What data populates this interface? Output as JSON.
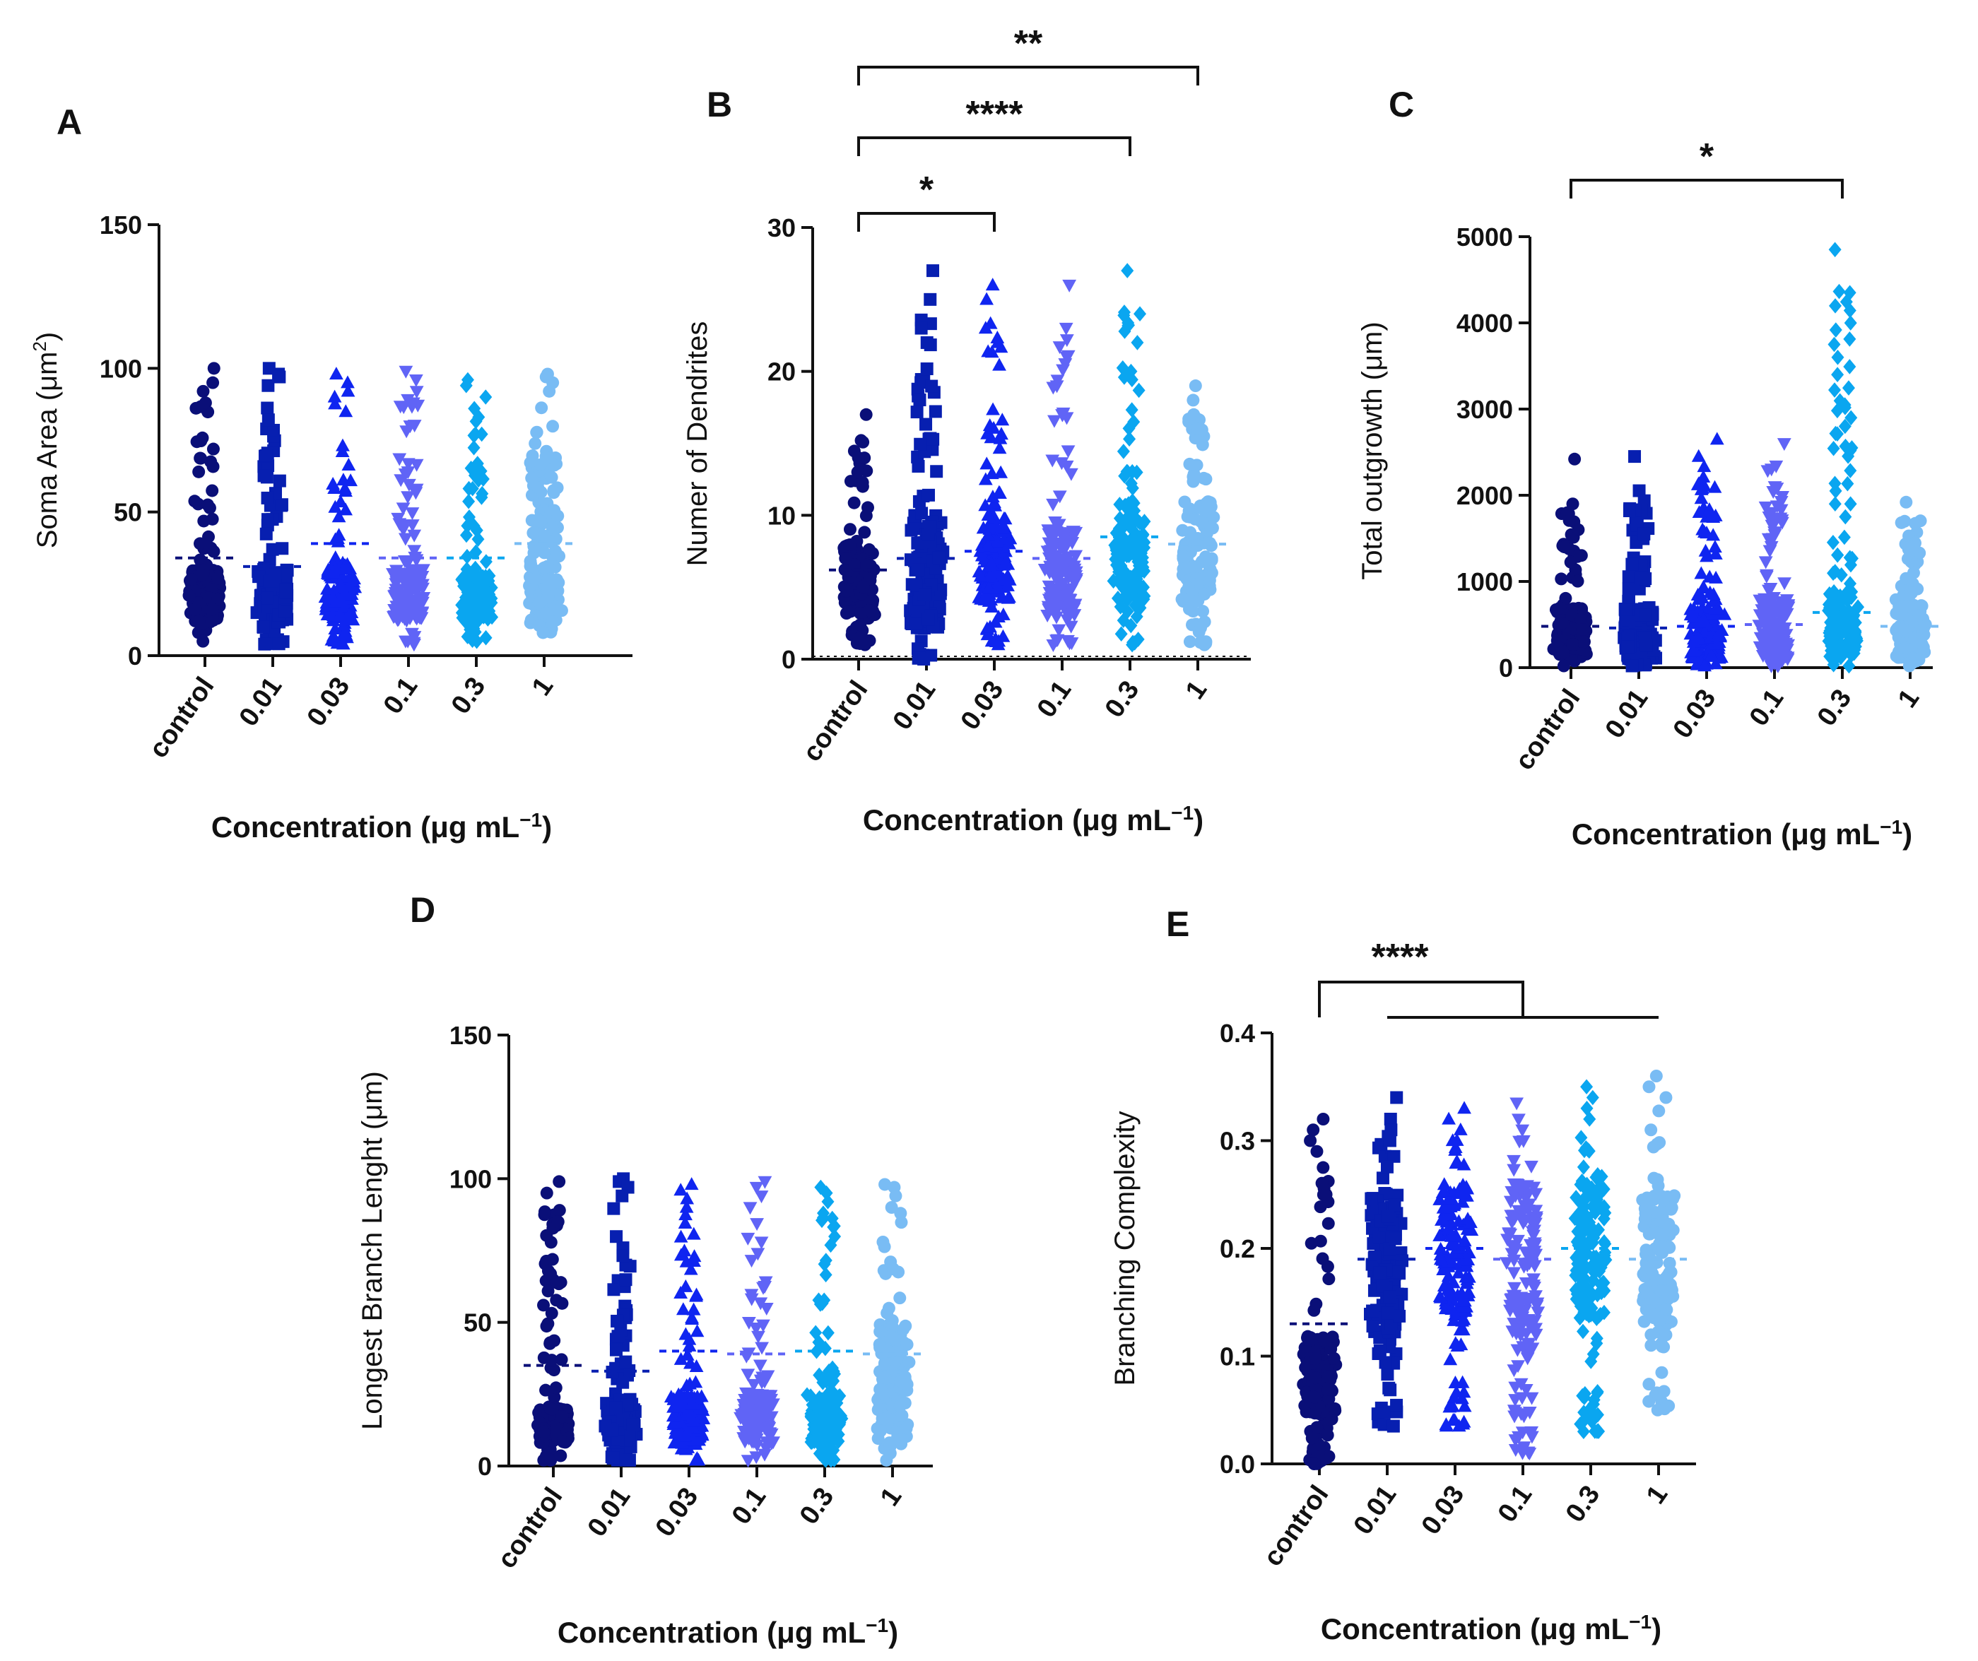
{
  "figure": {
    "series_colors": [
      "#0a0f78",
      "#071fb0",
      "#0f25f0",
      "#6064f6",
      "#0aa6f0",
      "#79bcf4"
    ],
    "series_markers": [
      "circle",
      "square",
      "triangle-up",
      "triangle-down",
      "diamond",
      "circle"
    ],
    "categories": [
      "control",
      "0.01",
      "0.03",
      "0.1",
      "0.3",
      "1"
    ],
    "x_axis_label": "Concentration (μg mL",
    "x_axis_label_superscript": "−1",
    "x_axis_label_suffix": ")"
  },
  "chart_data": [
    {
      "panel": "A",
      "type": "scatter",
      "title": "",
      "ylabel": "Soma Area (μm",
      "ylabel_superscript": "2",
      "ylabel_suffix": ")",
      "ylim": [
        0,
        150
      ],
      "yticks": [
        "0",
        "50",
        "100",
        "150"
      ],
      "series": [
        {
          "name": "control",
          "min": 5,
          "max": 100,
          "mean": 34,
          "dense_low": 12,
          "dense_high": 30,
          "top_points": [
            100,
            95,
            92,
            88
          ]
        },
        {
          "name": "0.01",
          "min": 4,
          "max": 100,
          "mean": 31,
          "dense_low": 12,
          "dense_high": 30,
          "top_points": [
            100,
            98,
            97,
            94
          ]
        },
        {
          "name": "0.03",
          "min": 4,
          "max": 98,
          "mean": 39,
          "dense_low": 12,
          "dense_high": 32,
          "top_points": [
            98,
            95,
            92,
            90
          ]
        },
        {
          "name": "0.1",
          "min": 4,
          "max": 99,
          "mean": 34,
          "dense_low": 12,
          "dense_high": 30,
          "top_points": [
            99,
            96,
            92,
            88
          ]
        },
        {
          "name": "0.3",
          "min": 5,
          "max": 96,
          "mean": 34,
          "dense_low": 12,
          "dense_high": 28,
          "top_points": [
            96,
            94,
            90,
            86
          ]
        },
        {
          "name": "1",
          "min": 8,
          "max": 98,
          "mean": 39,
          "dense_low": 10,
          "dense_high": 70,
          "top_points": [
            98,
            97,
            95,
            92
          ]
        }
      ],
      "significance": []
    },
    {
      "panel": "B",
      "type": "scatter",
      "title": "",
      "ylabel": "Numer of Dendrites",
      "ylabel_superscript": "",
      "ylabel_suffix": "",
      "ylim": [
        0,
        30
      ],
      "yticks": [
        "0",
        "10",
        "20",
        "30"
      ],
      "series": [
        {
          "name": "control",
          "min": 1,
          "max": 17,
          "mean": 6.2,
          "dense_low": 3,
          "dense_high": 8,
          "top_points": [
            17,
            14,
            13,
            12
          ]
        },
        {
          "name": "0.01",
          "min": 0,
          "max": 27,
          "mean": 7,
          "dense_low": 2,
          "dense_high": 10,
          "top_points": [
            27,
            25,
            23,
            22
          ]
        },
        {
          "name": "0.03",
          "min": 1,
          "max": 26,
          "mean": 7.5,
          "dense_low": 4,
          "dense_high": 10,
          "top_points": [
            26,
            25,
            23,
            22
          ]
        },
        {
          "name": "0.1",
          "min": 1,
          "max": 26,
          "mean": 7,
          "dense_low": 3,
          "dense_high": 9,
          "top_points": [
            26,
            23,
            21,
            19
          ]
        },
        {
          "name": "0.3",
          "min": 1,
          "max": 27,
          "mean": 8.5,
          "dense_low": 4,
          "dense_high": 11,
          "top_points": [
            27,
            24,
            22,
            20
          ]
        },
        {
          "name": "1",
          "min": 1,
          "max": 19,
          "mean": 8,
          "dense_low": 4,
          "dense_high": 11,
          "top_points": [
            19,
            18,
            17,
            16
          ]
        }
      ],
      "significance": [
        {
          "from": 0,
          "to": 5,
          "label": "**",
          "level": 3
        },
        {
          "from": 0,
          "to": 4,
          "label": "****",
          "level": 2
        },
        {
          "from": 0,
          "to": 2,
          "label": "*",
          "level": 1
        }
      ]
    },
    {
      "panel": "C",
      "type": "scatter",
      "title": "",
      "ylabel": "Total outgrowth (μm)",
      "ylabel_superscript": "",
      "ylabel_suffix": "",
      "ylim": [
        0,
        5000
      ],
      "yticks": [
        "0",
        "1000",
        "2000",
        "3000",
        "4000",
        "5000"
      ],
      "series": [
        {
          "name": "control",
          "min": 20,
          "max": 2420,
          "mean": 480,
          "dense_low": 100,
          "dense_high": 700,
          "top_points": [
            2420,
            1900,
            1600,
            1400
          ]
        },
        {
          "name": "0.01",
          "min": 20,
          "max": 2450,
          "mean": 460,
          "dense_low": 100,
          "dense_high": 700,
          "top_points": [
            2450,
            1650,
            1550,
            1200
          ]
        },
        {
          "name": "0.03",
          "min": 20,
          "max": 2650,
          "mean": 480,
          "dense_low": 100,
          "dense_high": 700,
          "top_points": [
            2650,
            2450,
            1800,
            1600
          ]
        },
        {
          "name": "0.1",
          "min": 20,
          "max": 2600,
          "mean": 500,
          "dense_low": 100,
          "dense_high": 800,
          "top_points": [
            2600,
            2100,
            1800,
            1500
          ]
        },
        {
          "name": "0.3",
          "min": 20,
          "max": 4850,
          "mean": 640,
          "dense_low": 100,
          "dense_high": 900,
          "top_points": [
            4850,
            4350,
            3750,
            3600,
            2800,
            2550,
            2050,
            1900
          ]
        },
        {
          "name": "1",
          "min": 20,
          "max": 1920,
          "mean": 480,
          "dense_low": 100,
          "dense_high": 800,
          "top_points": [
            1920,
            1400,
            1200,
            1100
          ]
        }
      ],
      "significance": [
        {
          "from": 0,
          "to": 4,
          "label": "*",
          "level": 1
        }
      ]
    },
    {
      "panel": "D",
      "type": "scatter",
      "title": "",
      "ylabel": "Longest Branch Lenght (μm)",
      "ylabel_superscript": "",
      "ylabel_suffix": "",
      "ylim": [
        0,
        150
      ],
      "yticks": [
        "0",
        "50",
        "100",
        "150"
      ],
      "series": [
        {
          "name": "control",
          "min": 2,
          "max": 99,
          "mean": 35,
          "dense_low": 8,
          "dense_high": 20,
          "top_points": [
            99,
            95,
            89,
            85
          ]
        },
        {
          "name": "0.01",
          "min": 2,
          "max": 100,
          "mean": 33,
          "dense_low": 8,
          "dense_high": 22,
          "top_points": [
            100,
            99,
            97,
            94
          ]
        },
        {
          "name": "0.03",
          "min": 2,
          "max": 98,
          "mean": 40,
          "dense_low": 8,
          "dense_high": 25,
          "top_points": [
            98,
            96,
            93,
            90
          ]
        },
        {
          "name": "0.1",
          "min": 2,
          "max": 99,
          "mean": 39,
          "dense_low": 8,
          "dense_high": 25,
          "top_points": [
            99,
            97,
            94,
            90
          ]
        },
        {
          "name": "0.3",
          "min": 2,
          "max": 97,
          "mean": 40,
          "dense_low": 8,
          "dense_high": 25,
          "top_points": [
            97,
            95,
            92,
            88
          ]
        },
        {
          "name": "1",
          "min": 2,
          "max": 98,
          "mean": 39,
          "dense_low": 8,
          "dense_high": 50,
          "top_points": [
            98,
            97,
            94,
            90
          ]
        }
      ],
      "significance": []
    },
    {
      "panel": "E",
      "type": "scatter",
      "title": "",
      "ylabel": "Branching Complexity",
      "ylabel_superscript": "",
      "ylabel_suffix": "",
      "ylim": [
        0,
        0.4
      ],
      "yticks": [
        "0.0",
        "0.1",
        "0.2",
        "0.3",
        "0.4"
      ],
      "series": [
        {
          "name": "control",
          "min": 0.0,
          "max": 0.32,
          "mean": 0.13,
          "dense_low": 0.04,
          "dense_high": 0.12,
          "top_points": [
            0.32,
            0.31,
            0.3,
            0.29
          ]
        },
        {
          "name": "0.01",
          "min": 0.035,
          "max": 0.34,
          "mean": 0.19,
          "dense_low": 0.12,
          "dense_high": 0.25,
          "top_points": [
            0.34,
            0.32,
            0.31,
            0.3
          ]
        },
        {
          "name": "0.03",
          "min": 0.035,
          "max": 0.33,
          "mean": 0.2,
          "dense_low": 0.14,
          "dense_high": 0.26,
          "top_points": [
            0.33,
            0.32,
            0.31,
            0.3
          ]
        },
        {
          "name": "0.1",
          "min": 0.01,
          "max": 0.335,
          "mean": 0.19,
          "dense_low": 0.12,
          "dense_high": 0.26,
          "top_points": [
            0.335,
            0.32,
            0.31,
            0.3
          ]
        },
        {
          "name": "0.3",
          "min": 0.03,
          "max": 0.35,
          "mean": 0.2,
          "dense_low": 0.13,
          "dense_high": 0.27,
          "top_points": [
            0.35,
            0.34,
            0.33,
            0.32
          ]
        },
        {
          "name": "1",
          "min": 0.05,
          "max": 0.36,
          "mean": 0.19,
          "dense_low": 0.13,
          "dense_high": 0.25,
          "top_points": [
            0.36,
            0.35,
            0.34,
            0.31
          ]
        }
      ],
      "significance": [
        {
          "from": 0,
          "to_group": [
            1,
            5
          ],
          "label": "****",
          "level": 1
        }
      ]
    }
  ]
}
